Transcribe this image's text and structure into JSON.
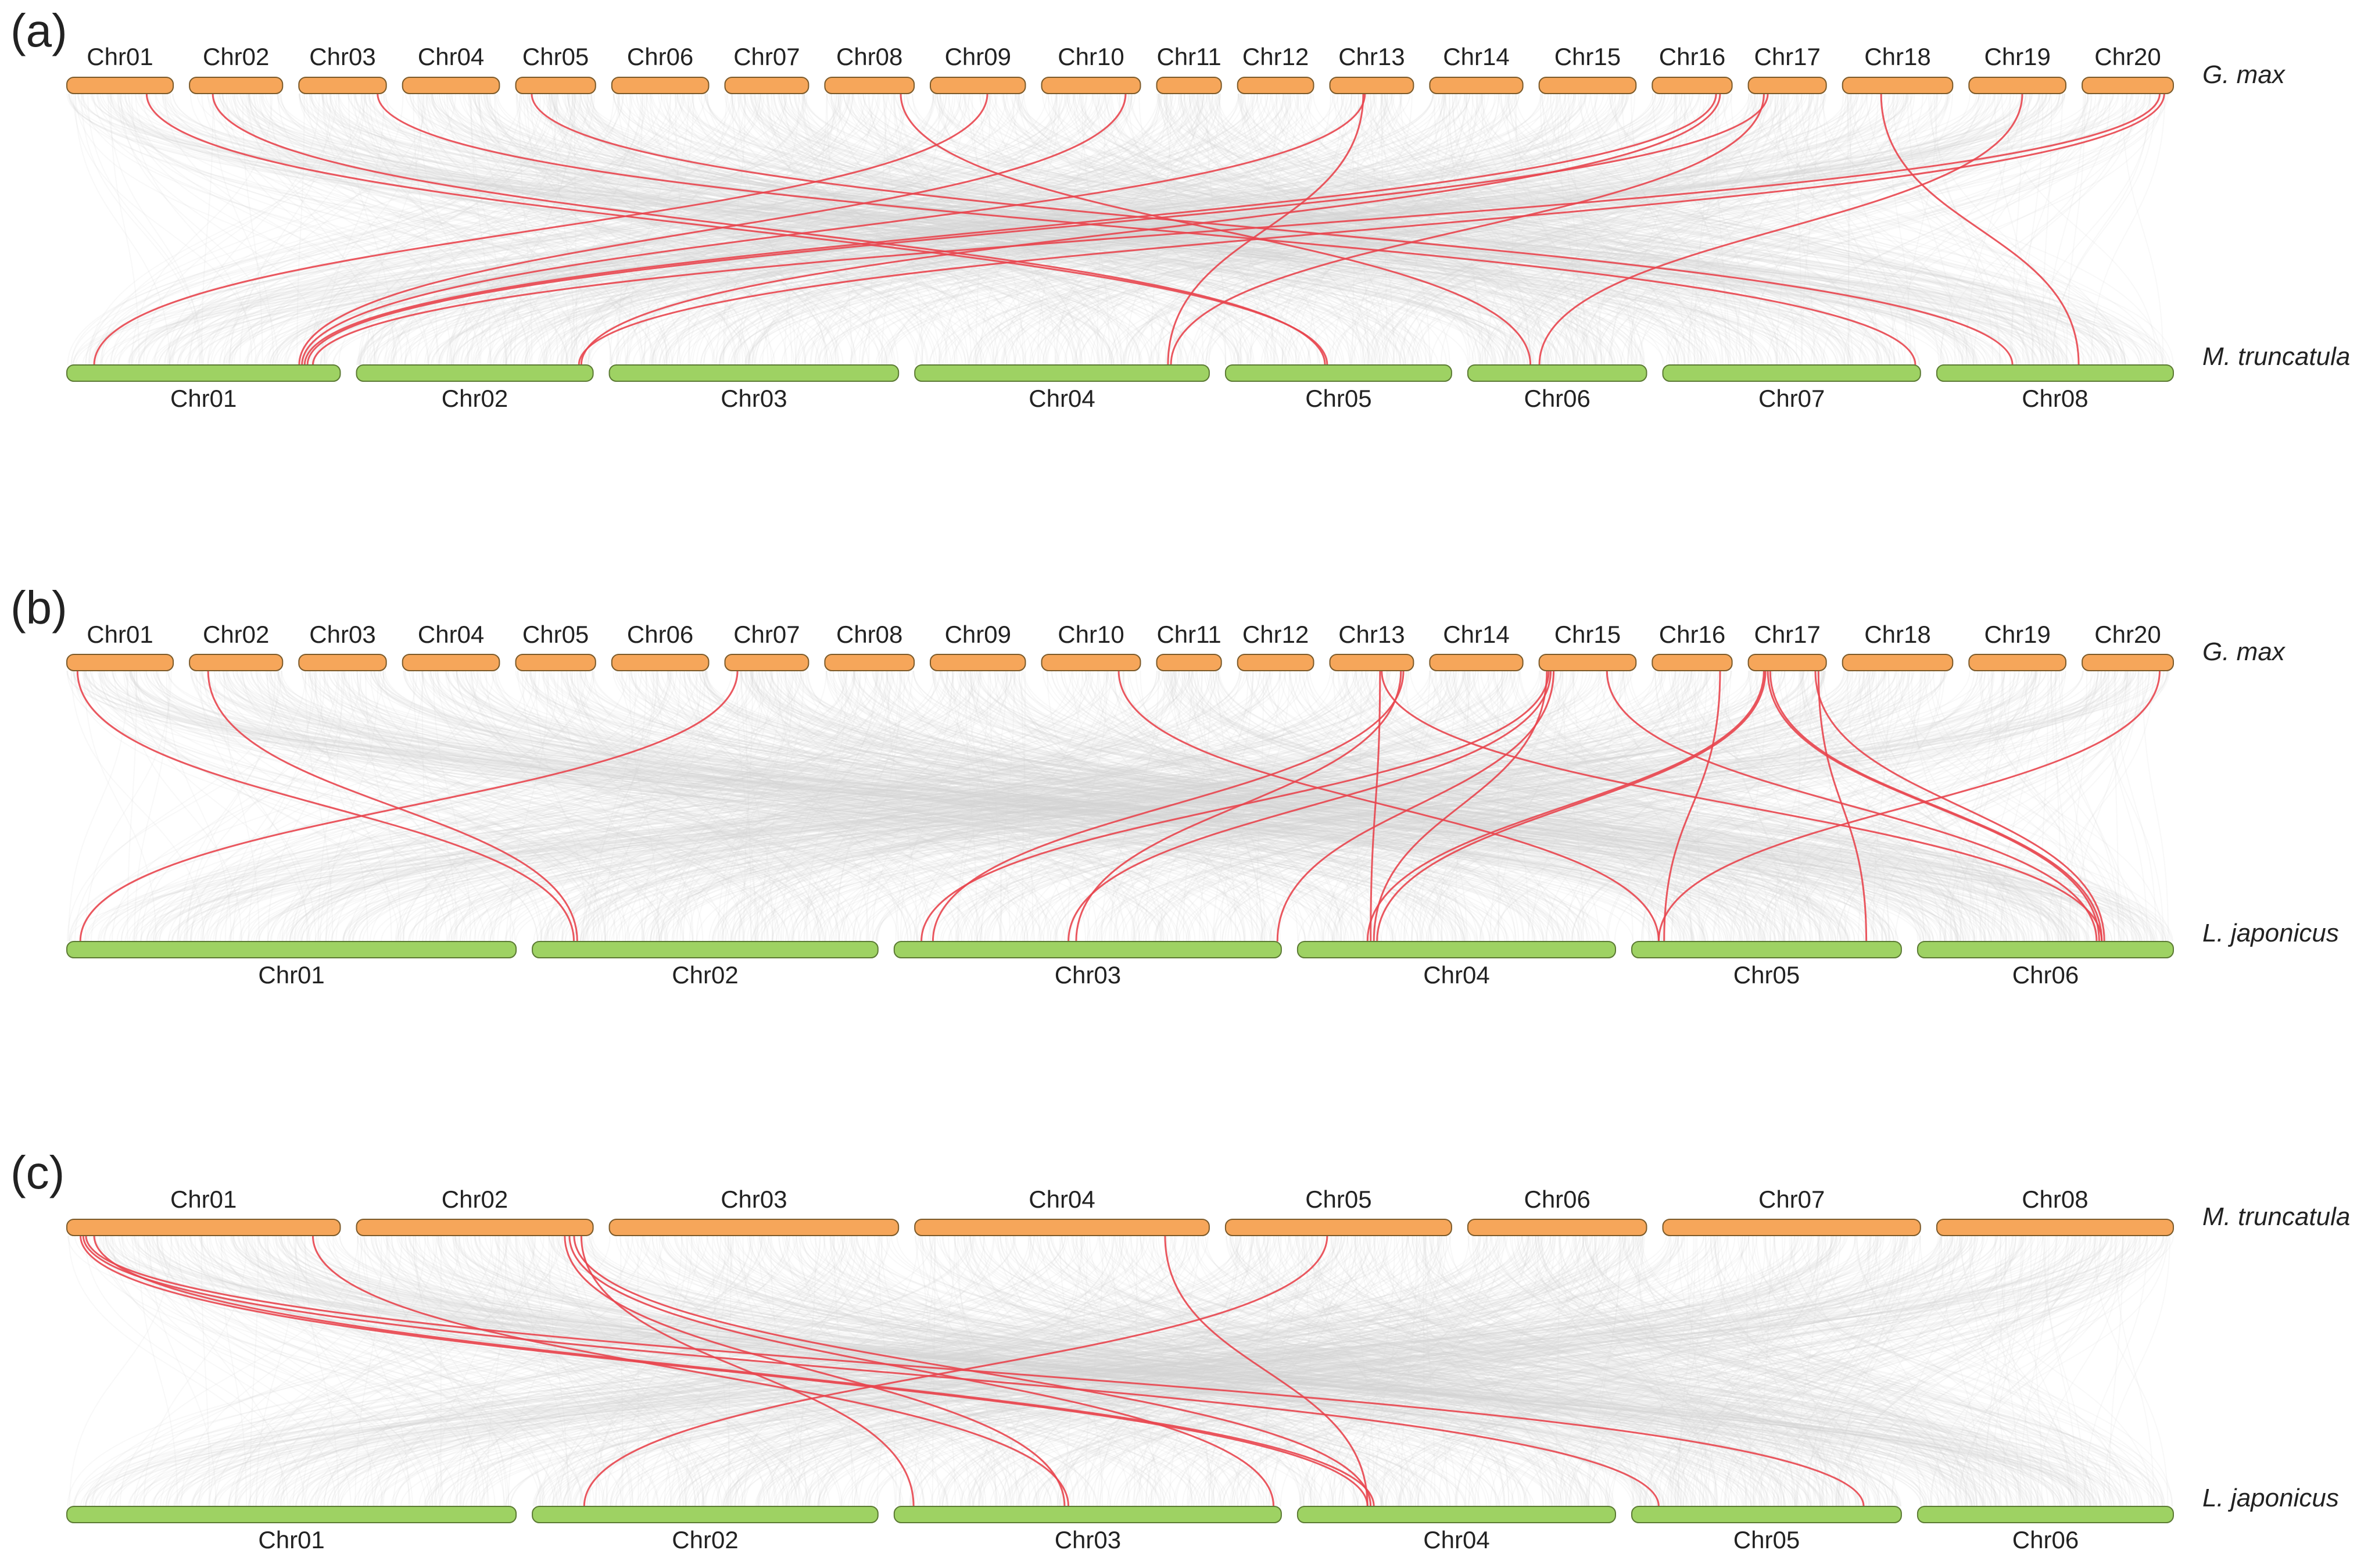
{
  "panels": [
    {
      "label": "(a)",
      "top": {
        "species": "G. max",
        "chromosomes": [
          "Chr01",
          "Chr02",
          "Chr03",
          "Chr04",
          "Chr05",
          "Chr06",
          "Chr07",
          "Chr08",
          "Chr09",
          "Chr10",
          "Chr11",
          "Chr12",
          "Chr13",
          "Chr14",
          "Chr15",
          "Chr16",
          "Chr17",
          "Chr18",
          "Chr19",
          "Chr20"
        ],
        "relative_lengths": [
          56,
          49,
          46,
          51,
          42,
          51,
          44,
          47,
          50,
          52,
          34,
          40,
          44,
          49,
          51,
          42,
          41,
          58,
          51,
          48
        ]
      },
      "bottom": {
        "species": "M. truncatula",
        "chromosomes": [
          "Chr01",
          "Chr02",
          "Chr03",
          "Chr04",
          "Chr05",
          "Chr06",
          "Chr07",
          "Chr08"
        ],
        "relative_lengths": [
          52,
          45,
          55,
          56,
          43,
          34,
          49,
          45
        ]
      },
      "highlighted_links": [
        {
          "from": "Chr01",
          "from_pos": 0.75,
          "to": "Chr05",
          "to_pos": 0.45
        },
        {
          "from": "Chr02",
          "from_pos": 0.25,
          "to": "Chr05",
          "to_pos": 0.44
        },
        {
          "from": "Chr03",
          "from_pos": 0.9,
          "to": "Chr07",
          "to_pos": 0.98
        },
        {
          "from": "Chr05",
          "from_pos": 0.2,
          "to": "Chr08",
          "to_pos": 0.32
        },
        {
          "from": "Chr08",
          "from_pos": 0.85,
          "to": "Chr06",
          "to_pos": 0.35
        },
        {
          "from": "Chr09",
          "from_pos": 0.6,
          "to": "Chr01",
          "to_pos": 0.1
        },
        {
          "from": "Chr10",
          "from_pos": 0.85,
          "to": "Chr01",
          "to_pos": 0.85
        },
        {
          "from": "Chr13",
          "from_pos": 0.4,
          "to": "Chr04",
          "to_pos": 0.86
        },
        {
          "from": "Chr13",
          "from_pos": 0.42,
          "to": "Chr01",
          "to_pos": 0.86
        },
        {
          "from": "Chr16",
          "from_pos": 0.8,
          "to": "Chr01",
          "to_pos": 0.87
        },
        {
          "from": "Chr16",
          "from_pos": 0.85,
          "to": "Chr02",
          "to_pos": 0.95
        },
        {
          "from": "Chr17",
          "from_pos": 0.2,
          "to": "Chr04",
          "to_pos": 0.87
        },
        {
          "from": "Chr17",
          "from_pos": 0.25,
          "to": "Chr01",
          "to_pos": 0.88
        },
        {
          "from": "Chr18",
          "from_pos": 0.35,
          "to": "Chr08",
          "to_pos": 0.6
        },
        {
          "from": "Chr19",
          "from_pos": 0.55,
          "to": "Chr06",
          "to_pos": 0.4
        },
        {
          "from": "Chr20",
          "from_pos": 0.85,
          "to": "Chr01",
          "to_pos": 0.9
        },
        {
          "from": "Chr20",
          "from_pos": 0.9,
          "to": "Chr02",
          "to_pos": 0.94
        }
      ]
    },
    {
      "label": "(b)",
      "top": {
        "species": "G. max",
        "chromosomes": [
          "Chr01",
          "Chr02",
          "Chr03",
          "Chr04",
          "Chr05",
          "Chr06",
          "Chr07",
          "Chr08",
          "Chr09",
          "Chr10",
          "Chr11",
          "Chr12",
          "Chr13",
          "Chr14",
          "Chr15",
          "Chr16",
          "Chr17",
          "Chr18",
          "Chr19",
          "Chr20"
        ],
        "relative_lengths": [
          56,
          49,
          46,
          51,
          42,
          51,
          44,
          47,
          50,
          52,
          34,
          40,
          44,
          49,
          51,
          42,
          41,
          58,
          51,
          48
        ]
      },
      "bottom": {
        "species": "L. japonicus",
        "chromosomes": [
          "Chr01",
          "Chr02",
          "Chr03",
          "Chr04",
          "Chr05",
          "Chr06"
        ],
        "relative_lengths": [
          65,
          50,
          56,
          46,
          39,
          37
        ]
      },
      "highlighted_links": [
        {
          "from": "Chr01",
          "from_pos": 0.1,
          "to": "Chr02",
          "to_pos": 0.12
        },
        {
          "from": "Chr02",
          "from_pos": 0.2,
          "to": "Chr02",
          "to_pos": 0.13
        },
        {
          "from": "Chr07",
          "from_pos": 0.15,
          "to": "Chr01",
          "to_pos": 0.03
        },
        {
          "from": "Chr10",
          "from_pos": 0.78,
          "to": "Chr05",
          "to_pos": 0.1
        },
        {
          "from": "Chr13",
          "from_pos": 0.6,
          "to": "Chr04",
          "to_pos": 0.23
        },
        {
          "from": "Chr13",
          "from_pos": 0.85,
          "to": "Chr03",
          "to_pos": 0.47
        },
        {
          "from": "Chr13",
          "from_pos": 0.88,
          "to": "Chr03",
          "to_pos": 0.1
        },
        {
          "from": "Chr13",
          "from_pos": 0.62,
          "to": "Chr06",
          "to_pos": 0.72
        },
        {
          "from": "Chr15",
          "from_pos": 0.1,
          "to": "Chr03",
          "to_pos": 0.07
        },
        {
          "from": "Chr15",
          "from_pos": 0.12,
          "to": "Chr03",
          "to_pos": 0.45
        },
        {
          "from": "Chr15",
          "from_pos": 0.15,
          "to": "Chr03",
          "to_pos": 0.99
        },
        {
          "from": "Chr15",
          "from_pos": 0.08,
          "to": "Chr04",
          "to_pos": 0.24
        },
        {
          "from": "Chr15",
          "from_pos": 0.7,
          "to": "Chr06",
          "to_pos": 0.7
        },
        {
          "from": "Chr16",
          "from_pos": 0.85,
          "to": "Chr05",
          "to_pos": 0.12
        },
        {
          "from": "Chr17",
          "from_pos": 0.2,
          "to": "Chr04",
          "to_pos": 0.22
        },
        {
          "from": "Chr17",
          "from_pos": 0.22,
          "to": "Chr04",
          "to_pos": 0.25
        },
        {
          "from": "Chr17",
          "from_pos": 0.25,
          "to": "Chr06",
          "to_pos": 0.71
        },
        {
          "from": "Chr17",
          "from_pos": 0.28,
          "to": "Chr06",
          "to_pos": 0.72
        },
        {
          "from": "Chr17",
          "from_pos": 0.9,
          "to": "Chr05",
          "to_pos": 0.87
        },
        {
          "from": "Chr17",
          "from_pos": 0.86,
          "to": "Chr06",
          "to_pos": 0.73
        },
        {
          "from": "Chr20",
          "from_pos": 0.85,
          "to": "Chr05",
          "to_pos": 0.1
        }
      ]
    },
    {
      "label": "(c)",
      "top": {
        "species": "M. truncatula",
        "chromosomes": [
          "Chr01",
          "Chr02",
          "Chr03",
          "Chr04",
          "Chr05",
          "Chr06",
          "Chr07",
          "Chr08"
        ],
        "relative_lengths": [
          52,
          45,
          55,
          56,
          43,
          34,
          49,
          45
        ]
      },
      "bottom": {
        "species": "L. japonicus",
        "chromosomes": [
          "Chr01",
          "Chr02",
          "Chr03",
          "Chr04",
          "Chr05",
          "Chr06"
        ],
        "relative_lengths": [
          65,
          50,
          56,
          46,
          39,
          37
        ]
      },
      "highlighted_links": [
        {
          "from": "Chr01",
          "from_pos": 0.05,
          "to": "Chr04",
          "to_pos": 0.22
        },
        {
          "from": "Chr01",
          "from_pos": 0.06,
          "to": "Chr05",
          "to_pos": 0.1
        },
        {
          "from": "Chr01",
          "from_pos": 0.07,
          "to": "Chr05",
          "to_pos": 0.86
        },
        {
          "from": "Chr01",
          "from_pos": 0.1,
          "to": "Chr04",
          "to_pos": 0.24
        },
        {
          "from": "Chr01",
          "from_pos": 0.9,
          "to": "Chr03",
          "to_pos": 0.45
        },
        {
          "from": "Chr02",
          "from_pos": 0.88,
          "to": "Chr03",
          "to_pos": 0.44
        },
        {
          "from": "Chr02",
          "from_pos": 0.9,
          "to": "Chr03",
          "to_pos": 0.98
        },
        {
          "from": "Chr02",
          "from_pos": 0.92,
          "to": "Chr04",
          "to_pos": 0.23
        },
        {
          "from": "Chr02",
          "from_pos": 0.95,
          "to": "Chr03",
          "to_pos": 0.05
        },
        {
          "from": "Chr04",
          "from_pos": 0.85,
          "to": "Chr04",
          "to_pos": 0.22
        },
        {
          "from": "Chr05",
          "from_pos": 0.45,
          "to": "Chr02",
          "to_pos": 0.15
        }
      ]
    }
  ]
}
